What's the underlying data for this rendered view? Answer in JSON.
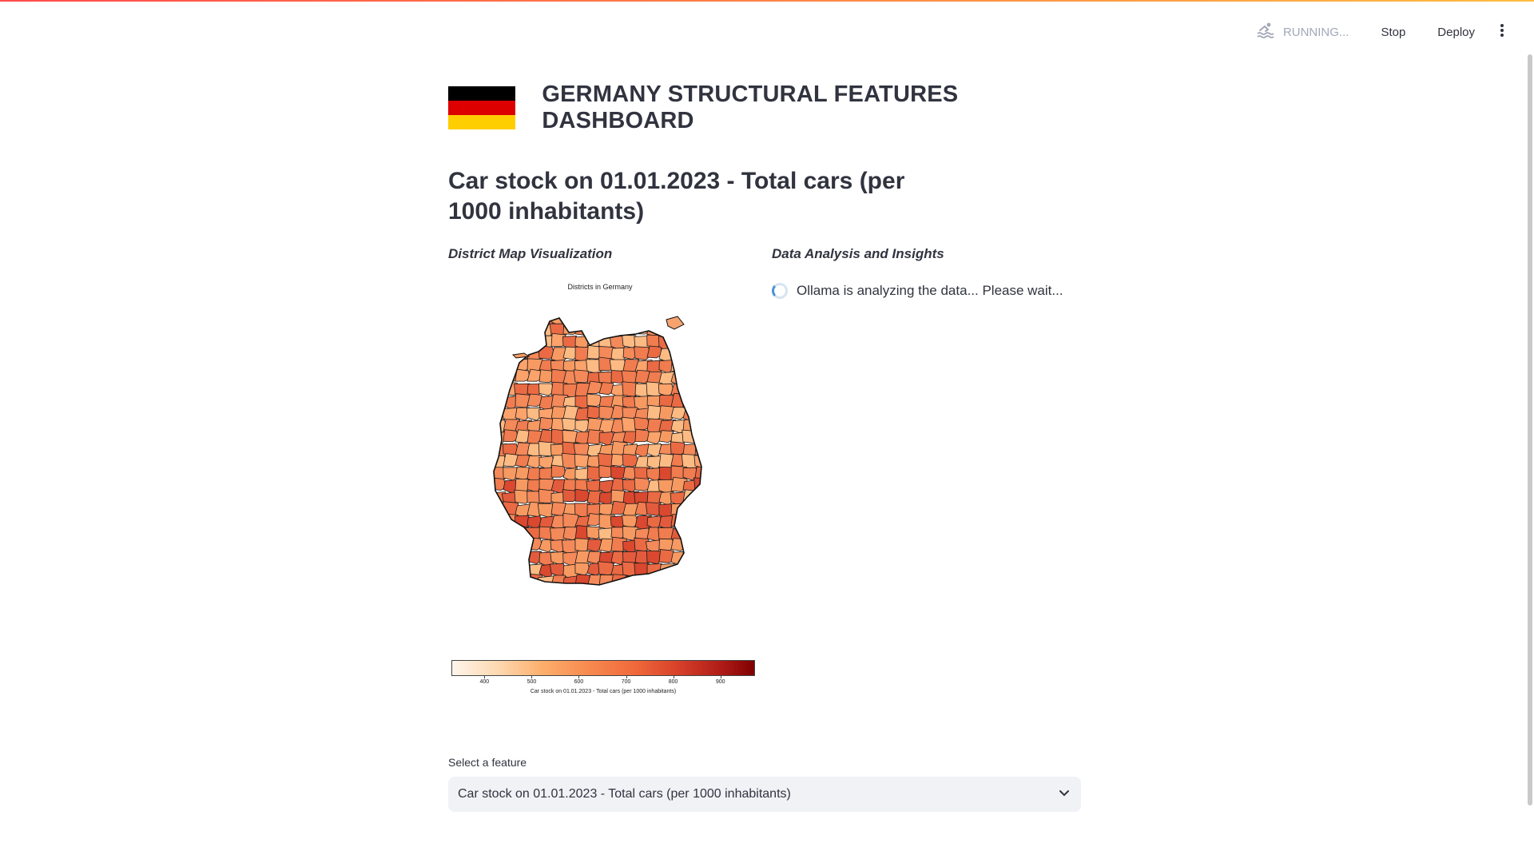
{
  "toolbar": {
    "status_text": "RUNNING...",
    "stop_label": "Stop",
    "deploy_label": "Deploy",
    "running_icon": "swimmer-icon",
    "menu_icon": "more-vertical-icon"
  },
  "header": {
    "flag_icon": "germany-flag-icon",
    "flag_colors": [
      "#000000",
      "#dd0000",
      "#ffce00"
    ],
    "title": "GERMANY STRUCTURAL FEATURES DASHBOARD"
  },
  "feature_heading": "Car stock on 01.01.2023 - Total cars (per 1000 inhabitants)",
  "left_column": {
    "title": "District Map Visualization",
    "map_title": "Districts in Germany"
  },
  "right_column": {
    "title": "Data Analysis and Insights",
    "status_text": "Ollama is analyzing the data... Please wait..."
  },
  "chart_data": {
    "type": "heatmap",
    "title": "Districts in Germany",
    "colormap": "OrRd",
    "colorbar": {
      "label": "Car stock on 01.01.2023 - Total cars (per 1000 inhabitants)",
      "ticks": [
        "400",
        "500",
        "600",
        "700",
        "800",
        "900"
      ],
      "range": [
        330,
        970
      ]
    }
  },
  "feature_select": {
    "label": "Select a feature",
    "value": "Car stock on 01.01.2023 - Total cars (per 1000 inhabitants)",
    "chevron_icon": "chevron-down-icon"
  },
  "colors": {
    "accent_start": "#ff4b4b",
    "accent_end": "#ffbd45",
    "text": "#31333f",
    "select_bg": "#f0f2f6",
    "spinner": "#4a90d9"
  }
}
